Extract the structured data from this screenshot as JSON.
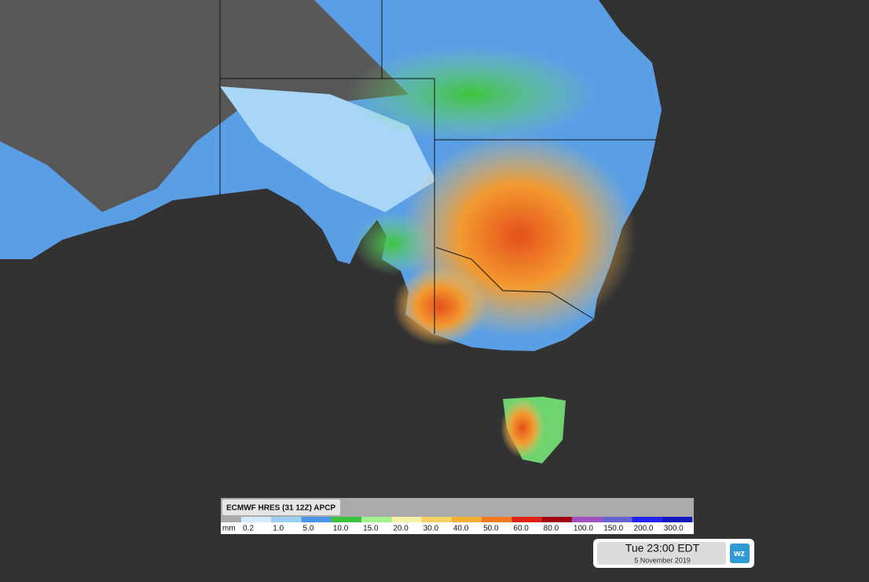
{
  "map_legend": {
    "title": "ECMWF HRES (31 12Z) APCP",
    "unit": "mm",
    "items": [
      {
        "label": "0.2",
        "color": "#d4eafa"
      },
      {
        "label": "1.0",
        "color": "#9ccff4"
      },
      {
        "label": "5.0",
        "color": "#4b95e6"
      },
      {
        "label": "10.0",
        "color": "#3cc43c"
      },
      {
        "label": "15.0",
        "color": "#a2f291"
      },
      {
        "label": "20.0",
        "color": "#f6f1a4"
      },
      {
        "label": "30.0",
        "color": "#f6d163"
      },
      {
        "label": "40.0",
        "color": "#f5ae32"
      },
      {
        "label": "50.0",
        "color": "#ef7a22"
      },
      {
        "label": "60.0",
        "color": "#df2213"
      },
      {
        "label": "80.0",
        "color": "#a00012"
      },
      {
        "label": "100.0",
        "color": "#a052c0"
      },
      {
        "label": "150.0",
        "color": "#6463d2"
      },
      {
        "label": "200.0",
        "color": "#2222ee"
      },
      {
        "label": "300.0",
        "color": "#1414bd"
      }
    ]
  },
  "timestamp": {
    "time": "Tue 23:00 EDT",
    "date": "5 November 2019"
  },
  "logo": "wz"
}
